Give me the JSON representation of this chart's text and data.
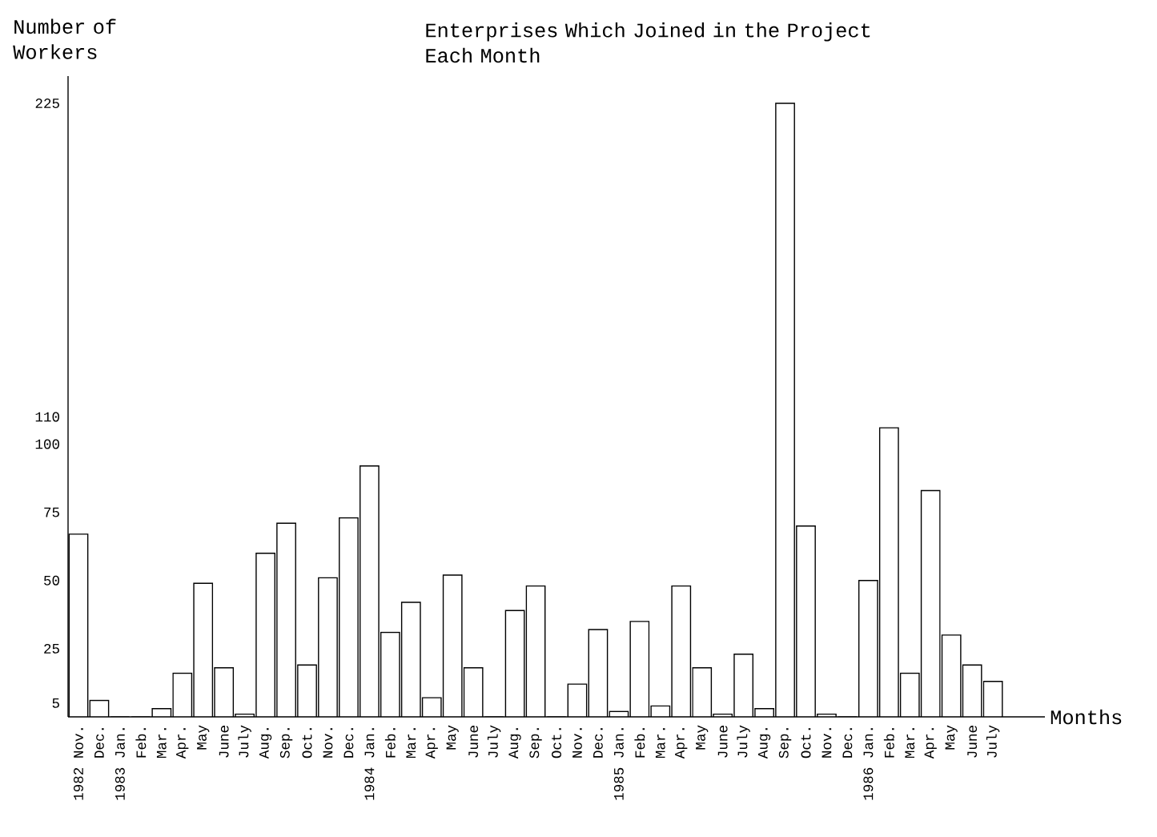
{
  "chart_data": {
    "type": "bar",
    "title": "Enterprises Which Joined in the Project Each Month",
    "ylabel": "Number of Workers",
    "xlabel": "Months",
    "categories": [
      "1982 Nov.",
      "Dec.",
      "1983 Jan.",
      "Feb.",
      "Mar.",
      "Apr.",
      "May",
      "June",
      "July",
      "Aug.",
      "Sep.",
      "Oct.",
      "Nov.",
      "Dec.",
      "1984 Jan.",
      "Feb.",
      "Mar.",
      "Apr.",
      "May",
      "June",
      "July",
      "Aug.",
      "Sep.",
      "Oct.",
      "Nov.",
      "Dec.",
      "1985 Jan.",
      "Feb.",
      "Mar.",
      "Apr.",
      "May",
      "June",
      "July",
      "Aug.",
      "Sep.",
      "Oct.",
      "Nov.",
      "Dec.",
      "1986 Jan.",
      "Feb.",
      "Mar.",
      "Apr.",
      "May",
      "June",
      "July"
    ],
    "values": [
      67,
      6,
      0,
      0,
      3,
      16,
      49,
      18,
      1,
      60,
      71,
      19,
      51,
      73,
      92,
      31,
      42,
      7,
      52,
      18,
      0,
      39,
      48,
      0,
      12,
      32,
      2,
      35,
      4,
      48,
      18,
      1,
      23,
      3,
      225,
      70,
      1,
      0,
      50,
      106,
      16,
      83,
      30,
      19,
      13
    ],
    "color": "#ffffff",
    "ylim": [
      0,
      235
    ],
    "yticks": [
      5,
      25,
      50,
      75,
      100,
      110,
      225
    ],
    "grid": false
  }
}
